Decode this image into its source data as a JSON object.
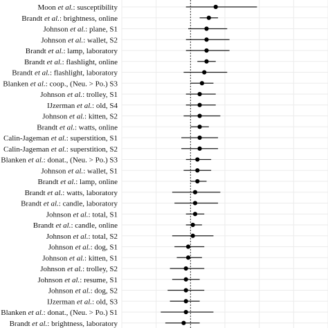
{
  "chart_data": {
    "type": "forest",
    "title": "",
    "xlabel": "",
    "ylabel": "",
    "xlim": [
      -0.3,
      0.6
    ],
    "grid": true,
    "reference_line": 0,
    "rows": [
      {
        "pre": "Moon ",
        "ital": "et al.",
        "post": ": susceptibility",
        "est": 0.11,
        "lo": -0.02,
        "hi": 0.29
      },
      {
        "pre": "Brandt ",
        "ital": "et al.",
        "post": ": brightness, online",
        "est": 0.08,
        "lo": 0.04,
        "hi": 0.12
      },
      {
        "pre": "Johnson ",
        "ital": "et al.",
        "post": ": plane, S1",
        "est": 0.07,
        "lo": -0.01,
        "hi": 0.16
      },
      {
        "pre": "Johnson ",
        "ital": "et al.",
        "post": ": wallet, S2",
        "est": 0.07,
        "lo": -0.02,
        "hi": 0.17
      },
      {
        "pre": "Brandt ",
        "ital": "et al.",
        "post": ": lamp, laboratory",
        "est": 0.07,
        "lo": -0.02,
        "hi": 0.17
      },
      {
        "pre": "Brandt ",
        "ital": "et al.",
        "post": ": flashlight, online",
        "est": 0.07,
        "lo": 0.03,
        "hi": 0.11
      },
      {
        "pre": "Brandt ",
        "ital": "et al.",
        "post": ": flashlight, laboratory",
        "est": 0.06,
        "lo": -0.03,
        "hi": 0.16
      },
      {
        "pre": "Blanken ",
        "ital": "et al.",
        "post": ": coop., (Neu. > Po.) S3",
        "est": 0.05,
        "lo": 0.0,
        "hi": 0.1
      },
      {
        "pre": "Johnson ",
        "ital": "et al.",
        "post": ": trolley, S1",
        "est": 0.04,
        "lo": -0.02,
        "hi": 0.11
      },
      {
        "pre": "IJzerman ",
        "ital": "et al.",
        "post": ": old, S4",
        "est": 0.04,
        "lo": -0.02,
        "hi": 0.11
      },
      {
        "pre": "Johnson ",
        "ital": "et al.",
        "post": ": kitten, S2",
        "est": 0.04,
        "lo": -0.03,
        "hi": 0.13
      },
      {
        "pre": "Brandt ",
        "ital": "et al.",
        "post": ": watts, online",
        "est": 0.04,
        "lo": 0.0,
        "hi": 0.08
      },
      {
        "pre": "Calin-Jageman ",
        "ital": "et al.",
        "post": ": superstition, S1",
        "est": 0.04,
        "lo": -0.04,
        "hi": 0.12
      },
      {
        "pre": "Calin-Jageman ",
        "ital": "et al.",
        "post": ": superstition, S2",
        "est": 0.04,
        "lo": -0.04,
        "hi": 0.12
      },
      {
        "pre": "Blanken ",
        "ital": "et al.",
        "post": ": donat., (Neu. > Po.) S3",
        "est": 0.03,
        "lo": -0.02,
        "hi": 0.09
      },
      {
        "pre": "Johnson ",
        "ital": "et al.",
        "post": ": wallet, S1",
        "est": 0.03,
        "lo": -0.03,
        "hi": 0.09
      },
      {
        "pre": "Brandt ",
        "ital": "et al.",
        "post": ": lamp, online",
        "est": 0.03,
        "lo": 0.0,
        "hi": 0.07
      },
      {
        "pre": "Brandt ",
        "ital": "et al.",
        "post": ": watts, laboratory",
        "est": 0.02,
        "lo": -0.08,
        "hi": 0.13
      },
      {
        "pre": "Brandt ",
        "ital": "et al.",
        "post": ": candle, laboratory",
        "est": 0.02,
        "lo": -0.07,
        "hi": 0.12
      },
      {
        "pre": "Johnson ",
        "ital": "et al.",
        "post": ": total, S1",
        "est": 0.02,
        "lo": -0.02,
        "hi": 0.06
      },
      {
        "pre": "Brandt ",
        "ital": "et al.",
        "post": ": candle, online",
        "est": 0.01,
        "lo": -0.02,
        "hi": 0.05
      },
      {
        "pre": "Johnson ",
        "ital": "et al.",
        "post": ": total, S2",
        "est": 0.01,
        "lo": -0.08,
        "hi": 0.1
      },
      {
        "pre": "Johnson ",
        "ital": "et al.",
        "post": ": dog, S1",
        "est": -0.01,
        "lo": -0.07,
        "hi": 0.06
      },
      {
        "pre": "Johnson ",
        "ital": "et al.",
        "post": ": kitten, S1",
        "est": -0.01,
        "lo": -0.06,
        "hi": 0.05
      },
      {
        "pre": "Johnson ",
        "ital": "et al.",
        "post": ": trolley, S2",
        "est": -0.02,
        "lo": -0.09,
        "hi": 0.06
      },
      {
        "pre": "Johnson ",
        "ital": "et al.",
        "post": ": resume, S1",
        "est": -0.02,
        "lo": -0.08,
        "hi": 0.04
      },
      {
        "pre": "Johnson ",
        "ital": "et al.",
        "post": ": dog, S2",
        "est": -0.02,
        "lo": -0.1,
        "hi": 0.06
      },
      {
        "pre": "IJzerman ",
        "ital": "et al.",
        "post": ": old, S3",
        "est": -0.02,
        "lo": -0.09,
        "hi": 0.04
      },
      {
        "pre": "Blanken ",
        "ital": "et al.",
        "post": ": donat., (Neu. > Po.) S1",
        "est": -0.02,
        "lo": -0.13,
        "hi": 0.1
      },
      {
        "pre": "Brandt ",
        "ital": "et al.",
        "post": ": brightness, laboratory",
        "est": -0.03,
        "lo": -0.11,
        "hi": 0.04
      }
    ]
  }
}
